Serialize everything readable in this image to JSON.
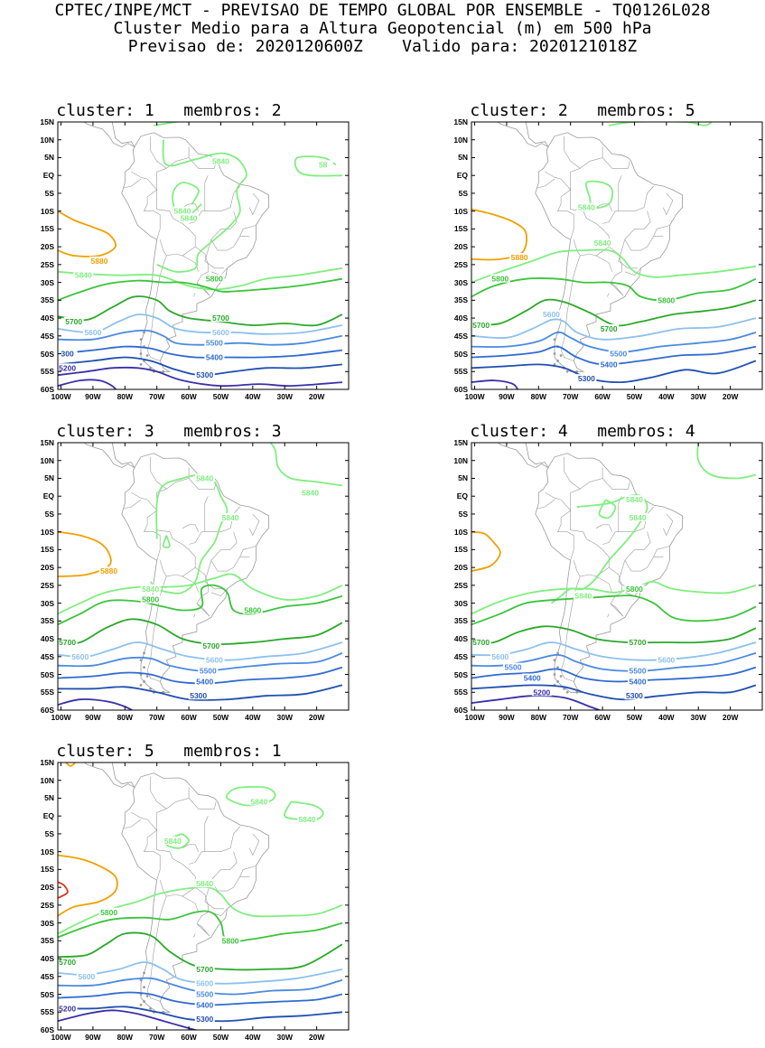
{
  "header": {
    "line1": "CPTEC/INPE/MCT - PREVISAO DE TEMPO GLOBAL POR ENSEMBLE - TQ0126L028",
    "line2": "Cluster Medio para a Altura Geopotencial (m) em 500 hPa",
    "line3": "Previsao de: 2020120600Z    Valido para: 2020121018Z"
  },
  "axes": {
    "lat_labels": [
      "15N",
      "10N",
      "5N",
      "EQ",
      "5S",
      "10S",
      "15S",
      "20S",
      "25S",
      "30S",
      "35S",
      "40S",
      "45S",
      "50S",
      "55S",
      "60S"
    ],
    "lon_labels": [
      "100W",
      "90W",
      "80W",
      "70W",
      "60W",
      "50W",
      "40W",
      "30W",
      "20W"
    ]
  },
  "colors": {
    "c5200": "#3a2fa8",
    "c5300": "#1f4fb0",
    "c5400": "#2f6bd0",
    "c5500": "#4a8ae0",
    "c5600": "#8cc1ee",
    "c5700": "#2aa82a",
    "c5800": "#3cc43c",
    "c5840": "#80ee80",
    "c5880": "#f0a000",
    "c5920": "#e03020",
    "map": "#9a9a9a"
  },
  "panels": [
    {
      "title": "cluster: 1   membros: 2",
      "labels": [
        {
          "text": "5840",
          "lon": -50,
          "lat": 4
        },
        {
          "text": "58",
          "lon": -18,
          "lat": 3
        },
        {
          "text": "5840",
          "lon": -62,
          "lat": -10
        },
        {
          "text": "5840",
          "lon": -60,
          "lat": -12
        },
        {
          "text": "5880",
          "lon": -88,
          "lat": -24
        },
        {
          "text": "5840",
          "lon": -93,
          "lat": -28
        },
        {
          "text": "5800",
          "lon": -52,
          "lat": -29
        },
        {
          "text": "5700",
          "lon": -96,
          "lat": -41
        },
        {
          "text": "5700",
          "lon": -50,
          "lat": -40
        },
        {
          "text": "5600",
          "lon": -90,
          "lat": -44
        },
        {
          "text": "5600",
          "lon": -50,
          "lat": -44
        },
        {
          "text": "5500",
          "lon": -52,
          "lat": -47
        },
        {
          "text": "300",
          "lon": -98,
          "lat": -50
        },
        {
          "text": "5400",
          "lon": -52,
          "lat": -51
        },
        {
          "text": "5200",
          "lon": -98,
          "lat": -54
        },
        {
          "text": "5300",
          "lon": -55,
          "lat": -56
        }
      ]
    },
    {
      "title": "cluster: 2   membros: 5",
      "labels": [
        {
          "text": "5840",
          "lon": -65,
          "lat": -9
        },
        {
          "text": "5840",
          "lon": -60,
          "lat": -19
        },
        {
          "text": "5880",
          "lon": -86,
          "lat": -23
        },
        {
          "text": "5800",
          "lon": -92,
          "lat": -29
        },
        {
          "text": "5800",
          "lon": -40,
          "lat": -35
        },
        {
          "text": "5700",
          "lon": -98,
          "lat": -42
        },
        {
          "text": "5600",
          "lon": -76,
          "lat": -39
        },
        {
          "text": "5700",
          "lon": -58,
          "lat": -43
        },
        {
          "text": "5500",
          "lon": -55,
          "lat": -50
        },
        {
          "text": "5400",
          "lon": -58,
          "lat": -53
        },
        {
          "text": "5300",
          "lon": -65,
          "lat": -57
        }
      ]
    },
    {
      "title": "cluster: 3   membros: 3",
      "labels": [
        {
          "text": "5840",
          "lon": -55,
          "lat": 5
        },
        {
          "text": "5840",
          "lon": -22,
          "lat": 1
        },
        {
          "text": "5840",
          "lon": -47,
          "lat": -6
        },
        {
          "text": "5880",
          "lon": -85,
          "lat": -21
        },
        {
          "text": "5840",
          "lon": -72,
          "lat": -26
        },
        {
          "text": "5800",
          "lon": -72,
          "lat": -29
        },
        {
          "text": "5800",
          "lon": -40,
          "lat": -32
        },
        {
          "text": "5700",
          "lon": -98,
          "lat": -41
        },
        {
          "text": "5700",
          "lon": -53,
          "lat": -42
        },
        {
          "text": "5600",
          "lon": -94,
          "lat": -45
        },
        {
          "text": "5600",
          "lon": -52,
          "lat": -46
        },
        {
          "text": "5500",
          "lon": -54,
          "lat": -49
        },
        {
          "text": "5400",
          "lon": -55,
          "lat": -52
        },
        {
          "text": "5300",
          "lon": -57,
          "lat": -56
        }
      ]
    },
    {
      "title": "cluster: 4   membros: 4",
      "labels": [
        {
          "text": "5840",
          "lon": -50,
          "lat": -1
        },
        {
          "text": "5840",
          "lon": -49,
          "lat": -6
        },
        {
          "text": "5800",
          "lon": -50,
          "lat": -26
        },
        {
          "text": "5840",
          "lon": -66,
          "lat": -28
        },
        {
          "text": "5700",
          "lon": -98,
          "lat": -41
        },
        {
          "text": "5700",
          "lon": -49,
          "lat": -41
        },
        {
          "text": "5600",
          "lon": -92,
          "lat": -45
        },
        {
          "text": "5500",
          "lon": -88,
          "lat": -48
        },
        {
          "text": "5400",
          "lon": -82,
          "lat": -51
        },
        {
          "text": "5600",
          "lon": -40,
          "lat": -46
        },
        {
          "text": "5500",
          "lon": -49,
          "lat": -49
        },
        {
          "text": "5400",
          "lon": -49,
          "lat": -52
        },
        {
          "text": "5200",
          "lon": -79,
          "lat": -55
        },
        {
          "text": "5300",
          "lon": -50,
          "lat": -56
        }
      ]
    },
    {
      "title": "cluster: 5   membros: 1",
      "labels": [
        {
          "text": "5840",
          "lon": -38,
          "lat": 4
        },
        {
          "text": "5840",
          "lon": -23,
          "lat": -1
        },
        {
          "text": "5840",
          "lon": -65,
          "lat": -7
        },
        {
          "text": "5840",
          "lon": -55,
          "lat": -19
        },
        {
          "text": "5800",
          "lon": -85,
          "lat": -27
        },
        {
          "text": "5800",
          "lon": -47,
          "lat": -35
        },
        {
          "text": "5700",
          "lon": -98,
          "lat": -41
        },
        {
          "text": "5700",
          "lon": -55,
          "lat": -43
        },
        {
          "text": "5600",
          "lon": -92,
          "lat": -45
        },
        {
          "text": "5600",
          "lon": -55,
          "lat": -47
        },
        {
          "text": "5500",
          "lon": -55,
          "lat": -50
        },
        {
          "text": "5400",
          "lon": -55,
          "lat": -53
        },
        {
          "text": "5200",
          "lon": -98,
          "lat": -54
        },
        {
          "text": "5300",
          "lon": -55,
          "lat": -57
        }
      ]
    }
  ]
}
